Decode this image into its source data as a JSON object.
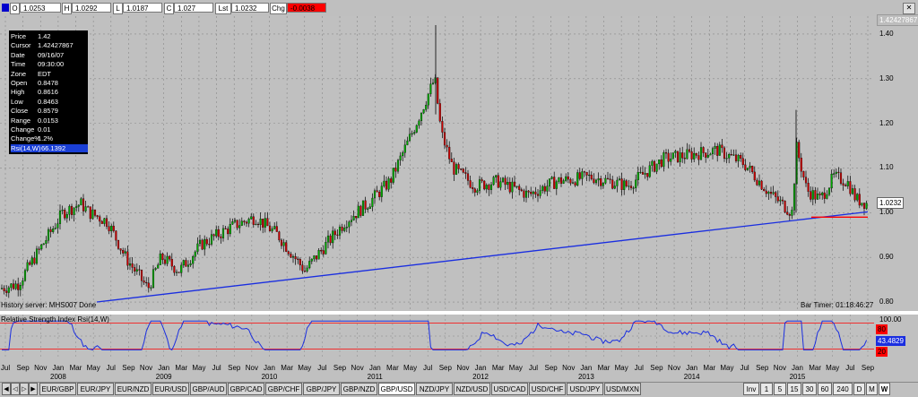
{
  "ohlc_bar": {
    "open_label": "O",
    "open": "1.0253",
    "high_label": "H",
    "high": "1.0292",
    "low_label": "L",
    "low": "1.0187",
    "close_label": "C",
    "close": "1.027",
    "last_label": "Lst",
    "last": "1.0232",
    "change_label": "Chg",
    "change": "-0.0038"
  },
  "info_box": {
    "rows": [
      {
        "k": "Price",
        "v": "1.42"
      },
      {
        "k": "Cursor",
        "v": "1.42427867"
      },
      {
        "k": "Date",
        "v": "09/16/07"
      },
      {
        "k": "Time",
        "v": "09:30:00"
      },
      {
        "k": "Zone",
        "v": "EDT"
      },
      {
        "k": "Open",
        "v": "0.8478"
      },
      {
        "k": "High",
        "v": "0.8616"
      },
      {
        "k": "Low",
        "v": "0.8463"
      },
      {
        "k": "Close",
        "v": "0.8579"
      },
      {
        "k": "Range",
        "v": "0.0153"
      },
      {
        "k": "Change",
        "v": "0.01"
      },
      {
        "k": "Change%",
        "v": "1.2%"
      },
      {
        "k": "Rsi(14,W)",
        "v": "66.1392"
      }
    ]
  },
  "status": {
    "history_server": "History server: MHS007 Done",
    "bar_timer": "Bar Timer: 01:18:46:27"
  },
  "rsi_panel": {
    "title": "Relative Strength Index Rsi(14,W)",
    "current": "43.4829",
    "upper": "80",
    "lower": "20",
    "top_label": "100.00"
  },
  "price_axis": {
    "cursor_flag": "1.42427867",
    "last_flag": "1.0232",
    "ticks": [
      "1.40",
      "1.30",
      "1.20",
      "1.10",
      "1.00",
      "0.90",
      "0.80"
    ]
  },
  "x_axis": {
    "months": [
      "Jul",
      "Sep",
      "Nov",
      "Jan",
      "Mar",
      "May",
      "Jul",
      "Sep",
      "Nov",
      "Jan",
      "Mar",
      "May",
      "Jul",
      "Sep",
      "Nov",
      "Jan",
      "Mar",
      "May",
      "Jul",
      "Sep",
      "Nov",
      "Jan",
      "Mar",
      "May",
      "Jul",
      "Sep",
      "Nov",
      "Jan",
      "Mar",
      "May",
      "Jul",
      "Sep",
      "Nov",
      "Jan",
      "Mar",
      "May",
      "Jul",
      "Sep",
      "Nov",
      "Jan",
      "Mar",
      "May",
      "Jul",
      "Sep",
      "Nov",
      "Jan",
      "Mar",
      "May",
      "Jul",
      "Sep"
    ],
    "years": [
      "2008",
      "2009",
      "2010",
      "2011",
      "2012",
      "2013",
      "2014",
      "2015"
    ]
  },
  "tabs": {
    "symbols": [
      "EUR/GBP",
      "EUR/JPY",
      "EUR/NZD",
      "EUR/USD",
      "GBP/AUD",
      "GBP/CAD",
      "GBP/CHF",
      "GBP/JPY",
      "GBP/NZD",
      "GBP/USD",
      "NZD/JPY",
      "NZD/USD",
      "USD/CAD",
      "USD/CHF",
      "USD/JPY",
      "USD/MXN"
    ],
    "active_symbol": "GBP/USD",
    "timeframes": [
      "Inv",
      "1",
      "5",
      "15",
      "30",
      "60",
      "240",
      "D",
      "M",
      "W"
    ],
    "active_timeframe": "W"
  },
  "chart_data": {
    "type": "candlestick",
    "title": "",
    "ylim": [
      0.78,
      1.44
    ],
    "rsi_ylim": [
      0,
      100
    ],
    "trendlines": [
      {
        "color": "#1a2ee0",
        "from": [
          "2008-12",
          "0.82"
        ],
        "to": [
          "2015-09",
          "1.00"
        ]
      },
      {
        "color": "#ff0000",
        "from": [
          "2015-03",
          "0.99"
        ],
        "to": [
          "2015-09",
          "0.99"
        ]
      }
    ],
    "colors": {
      "up": "#00aa00",
      "down": "#cc0000",
      "rsi": "#1a2ee0",
      "levels": "#ff0000"
    }
  }
}
